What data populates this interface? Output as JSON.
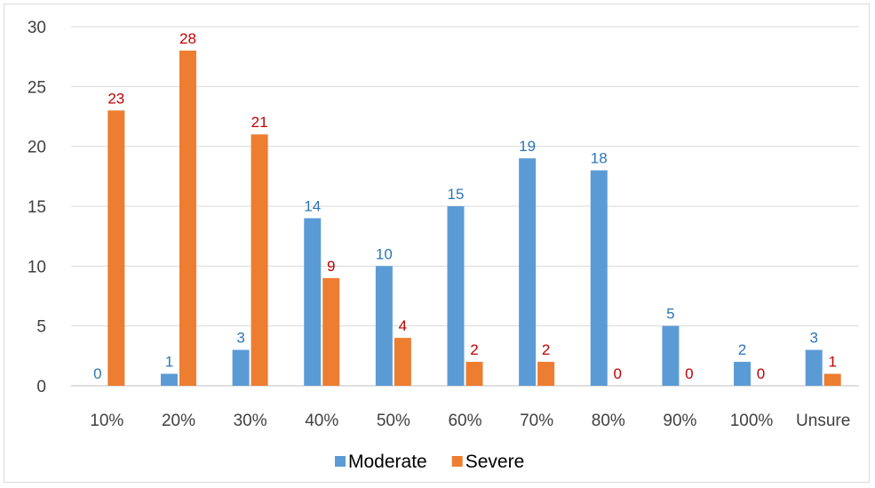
{
  "chart_data": {
    "type": "bar",
    "categories": [
      "10%",
      "20%",
      "30%",
      "40%",
      "50%",
      "60%",
      "70%",
      "80%",
      "90%",
      "100%",
      "Unsure"
    ],
    "series": [
      {
        "name": "Moderate",
        "color": "#5B9BD5",
        "label_color": "#2E75B6",
        "values": [
          0,
          1,
          3,
          14,
          10,
          15,
          19,
          18,
          5,
          2,
          3
        ]
      },
      {
        "name": "Severe",
        "color": "#ED7D31",
        "label_color": "#C00000",
        "values": [
          23,
          28,
          21,
          9,
          4,
          2,
          2,
          0,
          0,
          0,
          1
        ]
      }
    ],
    "title": "",
    "xlabel": "",
    "ylabel": "",
    "ylim": [
      0,
      30
    ],
    "yticks": [
      0,
      5,
      10,
      15,
      20,
      25,
      30
    ],
    "grid": true,
    "legend_position": "bottom"
  }
}
